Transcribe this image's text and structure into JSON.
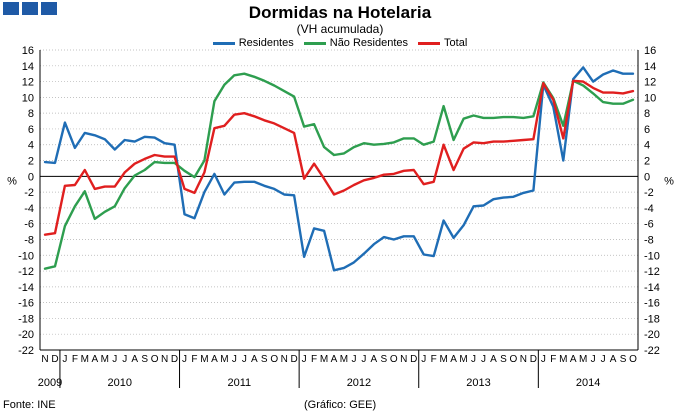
{
  "title": "Dormidas na Hotelaria",
  "subtitle": "(VH acumulada)",
  "footer": {
    "source": "Fonte: INE",
    "credit": "(Gráfico: GEE)"
  },
  "colors": {
    "logo": "#1f5aa6",
    "grid": "#b0b0b0",
    "axis": "#000000"
  },
  "chart_data": {
    "type": "line",
    "ylabel_left": "%",
    "ylabel_right": "%",
    "ylim": [
      -22,
      16
    ],
    "yticks": [
      -22,
      -20,
      -18,
      -16,
      -14,
      -12,
      -10,
      -8,
      -6,
      -4,
      -2,
      0,
      2,
      4,
      6,
      8,
      10,
      12,
      14,
      16
    ],
    "grid": true,
    "legend_position": "top-center",
    "x": [
      "N",
      "D",
      "J",
      "F",
      "M",
      "A",
      "M",
      "J",
      "J",
      "A",
      "S",
      "O",
      "N",
      "D",
      "J",
      "F",
      "M",
      "A",
      "M",
      "J",
      "J",
      "A",
      "S",
      "O",
      "N",
      "D",
      "J",
      "F",
      "M",
      "A",
      "M",
      "J",
      "J",
      "A",
      "S",
      "O",
      "N",
      "D",
      "J",
      "F",
      "M",
      "A",
      "M",
      "J",
      "J",
      "A",
      "S",
      "O",
      "N",
      "D",
      "J",
      "F",
      "M",
      "A",
      "M",
      "J",
      "J",
      "A",
      "S",
      "O"
    ],
    "years": [
      {
        "label": "2009",
        "start": 0,
        "end": 1
      },
      {
        "label": "2010",
        "start": 2,
        "end": 13
      },
      {
        "label": "2011",
        "start": 14,
        "end": 25
      },
      {
        "label": "2012",
        "start": 26,
        "end": 37
      },
      {
        "label": "2013",
        "start": 38,
        "end": 49
      },
      {
        "label": "2014",
        "start": 50,
        "end": 59
      }
    ],
    "series": [
      {
        "name": "Residentes",
        "color": "#1f6db5",
        "values": [
          1.8,
          1.7,
          6.8,
          3.6,
          5.5,
          5.2,
          4.7,
          3.4,
          4.6,
          4.4,
          5.0,
          4.9,
          4.2,
          4.0,
          -4.8,
          -5.3,
          -2.0,
          0.3,
          -2.3,
          -0.8,
          -0.7,
          -0.7,
          -1.2,
          -1.6,
          -2.3,
          -2.4,
          -10.2,
          -6.6,
          -6.9,
          -11.9,
          -11.6,
          -10.9,
          -9.8,
          -8.6,
          -7.7,
          -8.0,
          -7.6,
          -7.6,
          -9.9,
          -10.1,
          -5.6,
          -7.8,
          -6.2,
          -3.8,
          -3.7,
          -2.9,
          -2.7,
          -2.6,
          -2.1,
          -1.8,
          11.6,
          8.8,
          2.0,
          12.3,
          13.8,
          12.0,
          12.9,
          13.4,
          13.0,
          13.0
        ]
      },
      {
        "name": "Não Residentes",
        "color": "#2e9e4f",
        "values": [
          -11.7,
          -11.4,
          -6.3,
          -3.8,
          -1.9,
          -5.4,
          -4.5,
          -3.8,
          -1.5,
          0.1,
          0.8,
          1.8,
          1.7,
          1.7,
          0.7,
          -0.1,
          2.0,
          9.5,
          11.6,
          12.8,
          13.0,
          12.6,
          12.1,
          11.5,
          10.8,
          10.1,
          6.3,
          6.6,
          3.7,
          2.7,
          2.9,
          3.7,
          4.2,
          4.0,
          4.1,
          4.3,
          4.8,
          4.8,
          4.0,
          4.4,
          8.9,
          4.6,
          7.3,
          7.7,
          7.4,
          7.4,
          7.5,
          7.5,
          7.4,
          7.6,
          11.9,
          9.9,
          6.4,
          12.1,
          11.5,
          10.5,
          9.4,
          9.2,
          9.2,
          9.7
        ]
      },
      {
        "name": "Total",
        "color": "#e01f1f",
        "values": [
          -7.4,
          -7.2,
          -1.2,
          -1.1,
          0.8,
          -1.6,
          -1.3,
          -1.3,
          0.5,
          1.6,
          2.2,
          2.7,
          2.5,
          2.5,
          -1.6,
          -2.1,
          0.5,
          6.1,
          6.4,
          7.8,
          8.0,
          7.6,
          7.1,
          6.7,
          6.1,
          5.5,
          -0.3,
          1.6,
          -0.3,
          -2.3,
          -1.8,
          -1.1,
          -0.5,
          -0.2,
          0.2,
          0.3,
          0.7,
          0.8,
          -1.0,
          -0.7,
          4.0,
          0.8,
          3.5,
          4.3,
          4.2,
          4.4,
          4.4,
          4.5,
          4.6,
          4.7,
          11.8,
          9.7,
          4.8,
          12.1,
          12.0,
          11.2,
          10.6,
          10.6,
          10.5,
          10.8
        ]
      }
    ]
  }
}
